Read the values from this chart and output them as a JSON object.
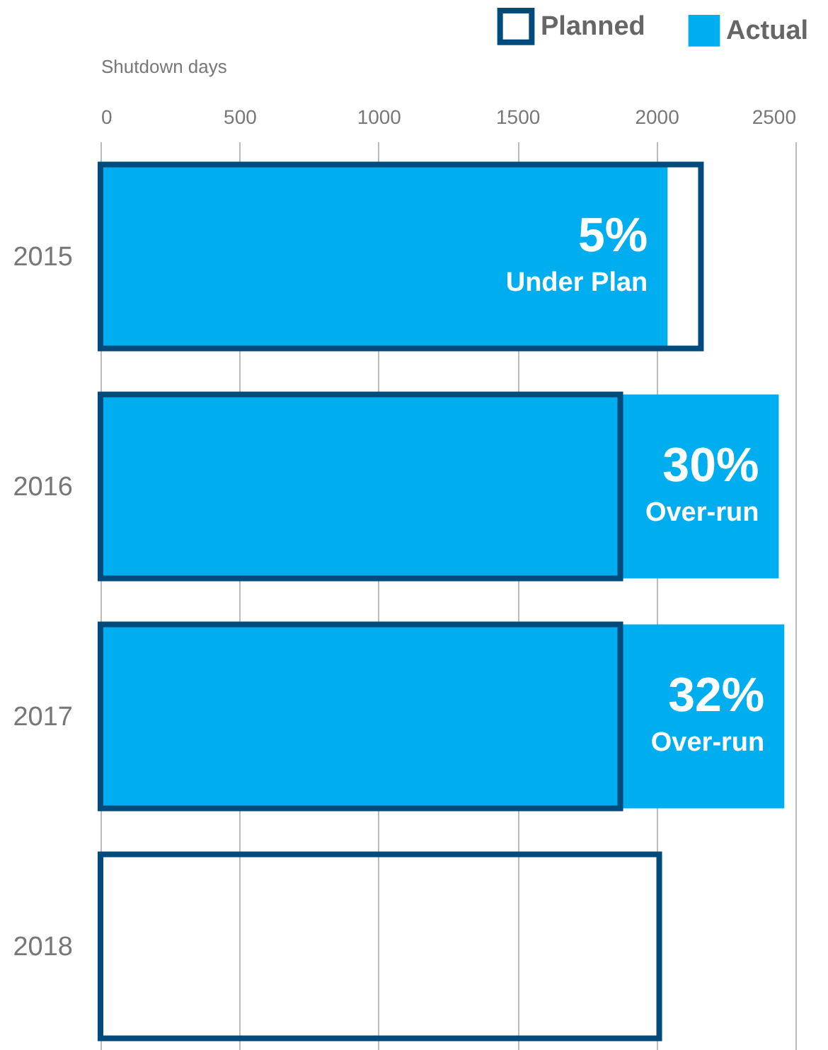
{
  "chart_data": {
    "type": "bar",
    "orientation": "horizontal",
    "xlabel": "Shutdown days",
    "categories": [
      "2015",
      "2016",
      "2017",
      "2018"
    ],
    "series": [
      {
        "name": "Planned",
        "color": "#004a7c",
        "values": [
          2160,
          1870,
          1870,
          2010
        ]
      },
      {
        "name": "Actual",
        "color": "#00aeef",
        "values": [
          2040,
          2440,
          2460,
          null
        ]
      }
    ],
    "xlim": [
      0,
      2500
    ],
    "xticks": [
      0,
      500,
      1000,
      1500,
      2000,
      2500
    ],
    "grid": "x",
    "legend": "top right",
    "annotations": [
      {
        "text": "5%",
        "y": "2015"
      },
      {
        "text": "Under Plan",
        "y": "2015"
      },
      {
        "text": "30%",
        "y": "2016"
      },
      {
        "text": "Over-run",
        "y": "2016"
      },
      {
        "text": "32%",
        "y": "2017"
      },
      {
        "text": "Over-run",
        "y": "2017"
      }
    ]
  }
}
